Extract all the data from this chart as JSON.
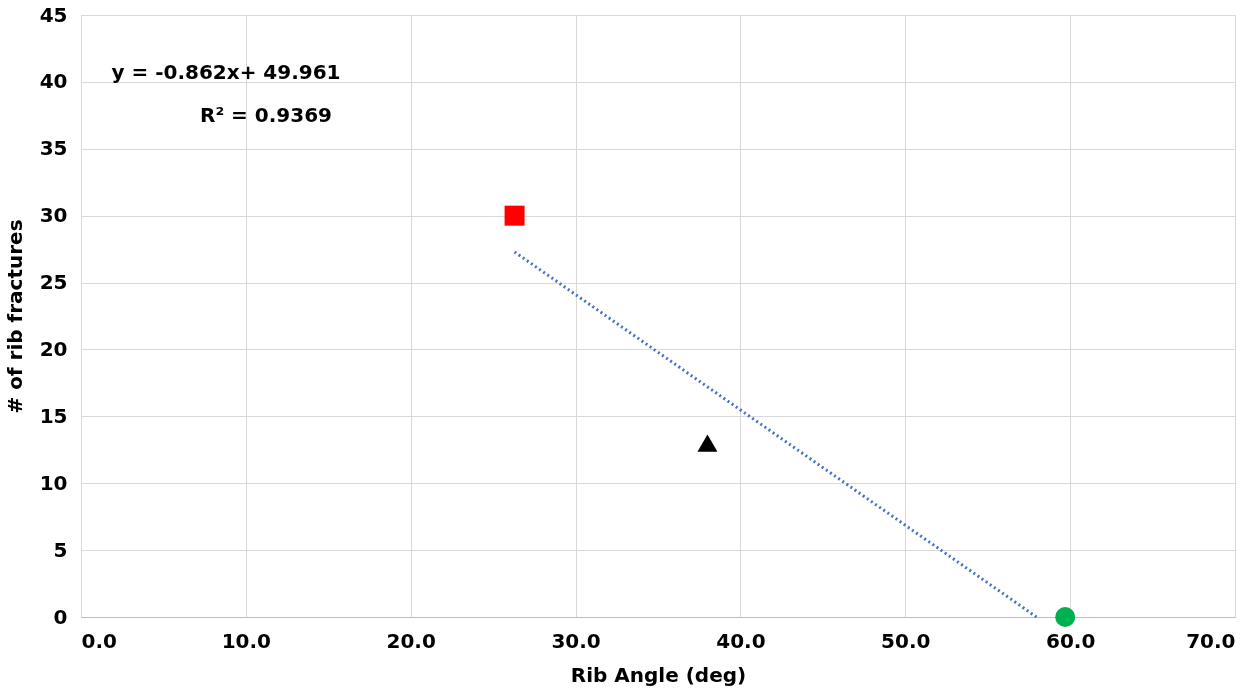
{
  "chart_data": {
    "type": "scatter",
    "xlabel": "Rib Angle (deg)",
    "ylabel": "# of rib fractures",
    "xlim": [
      0,
      70
    ],
    "xticks": [
      {
        "value": 0,
        "label": "0.0"
      },
      {
        "value": 10,
        "label": "10.0"
      },
      {
        "value": 20,
        "label": "20.0"
      },
      {
        "value": 30,
        "label": "30.0"
      },
      {
        "value": 40,
        "label": "40.0"
      },
      {
        "value": 50,
        "label": "50.0"
      },
      {
        "value": 60,
        "label": "60.0"
      },
      {
        "value": 70,
        "label": "70.0"
      }
    ],
    "ylim": [
      0,
      45
    ],
    "yticks": [
      0,
      5,
      10,
      15,
      20,
      25,
      30,
      35,
      40,
      45
    ],
    "grid": true,
    "legend": false,
    "series": [
      {
        "color": "#ff0000",
        "marker": "square",
        "x": [
          26.3
        ],
        "values": [
          30
        ]
      },
      {
        "color": "#000000",
        "marker": "triangle",
        "x": [
          38.0
        ],
        "values": [
          13
        ]
      },
      {
        "color": "#00b050",
        "marker": "circle",
        "x": [
          59.7
        ],
        "values": [
          0
        ]
      },
      {
        "type": "line",
        "color": "#4472c4",
        "line_style": "dotted",
        "marker": "none",
        "x": [
          26.3,
          57.96
        ],
        "values": [
          27.29,
          0
        ]
      }
    ],
    "annotations": [
      "y = -0.862x+ 49.961",
      "R² = 0.9369"
    ]
  }
}
